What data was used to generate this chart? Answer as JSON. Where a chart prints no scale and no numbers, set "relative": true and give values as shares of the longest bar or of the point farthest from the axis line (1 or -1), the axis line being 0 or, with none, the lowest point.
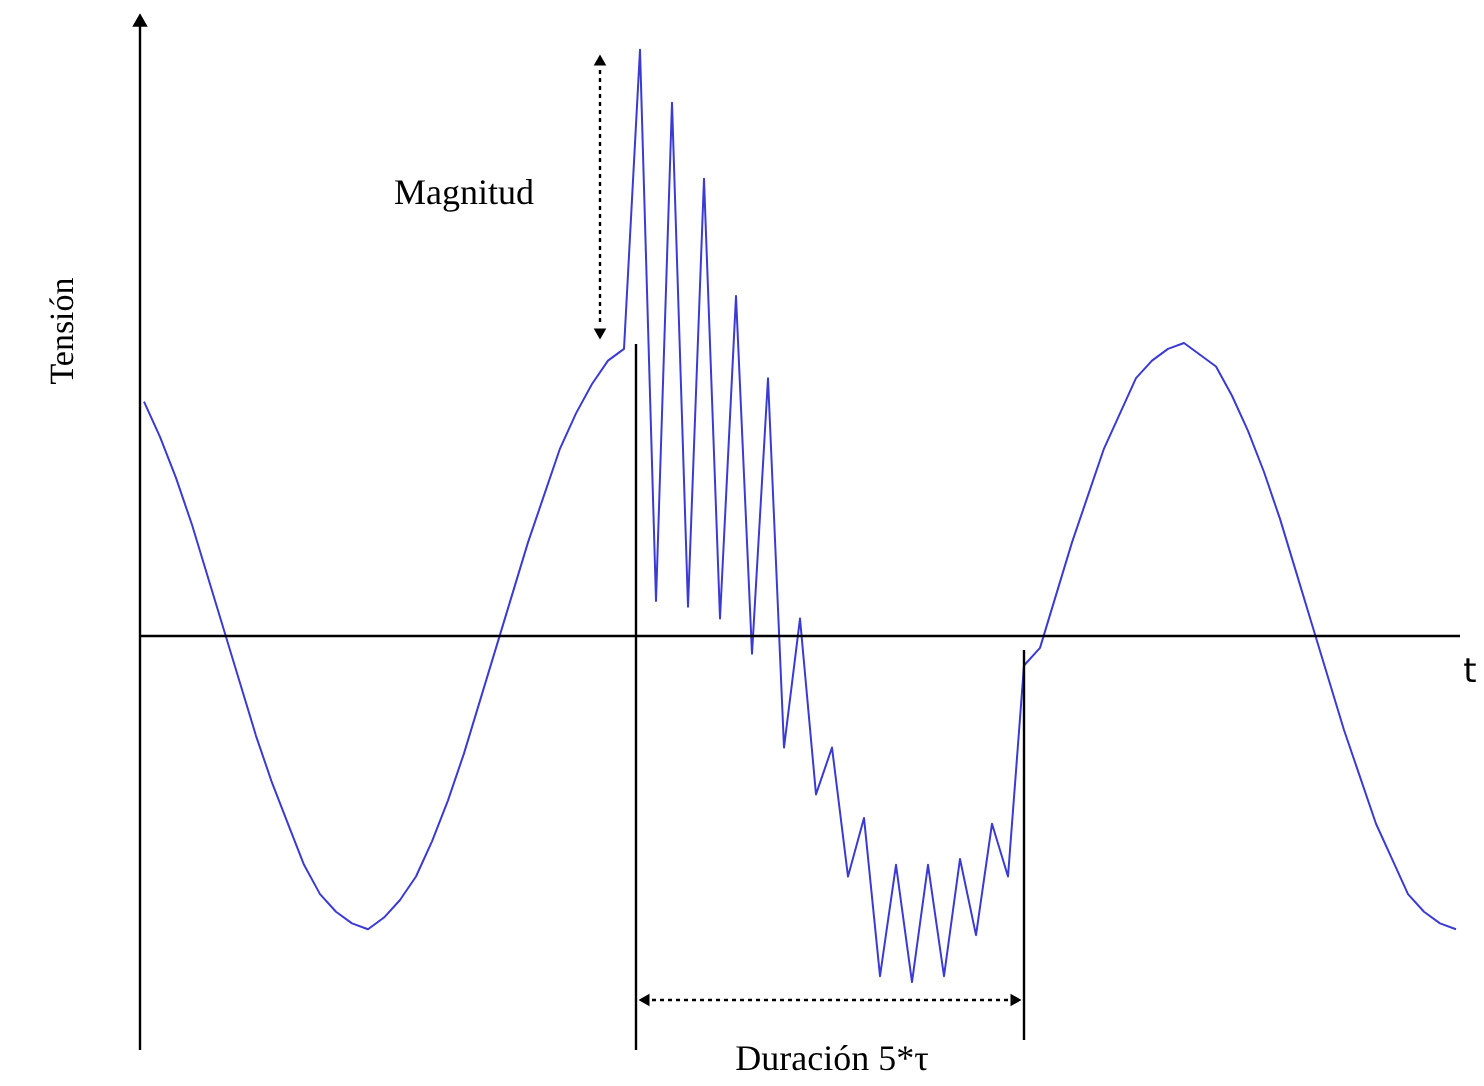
{
  "chart_data": {
    "type": "line",
    "relative": true,
    "ylabel": "Tensión",
    "xlabel": "t",
    "categories": [
      null,
      null,
      null,
      null,
      null,
      null,
      null,
      null,
      null,
      null,
      null,
      null,
      null,
      null,
      null,
      null,
      null,
      null,
      null,
      null,
      null,
      null,
      null,
      null,
      null,
      null,
      null,
      null,
      null,
      null,
      null,
      null,
      null,
      null,
      null,
      null,
      null,
      null,
      null,
      null,
      null,
      null,
      null,
      null,
      null,
      null,
      null,
      null,
      null,
      null,
      null,
      null,
      null,
      null,
      null,
      null,
      null,
      null,
      null,
      null,
      null,
      null,
      null,
      null,
      null,
      null,
      null,
      null,
      null,
      null,
      null,
      null,
      null,
      null,
      null,
      null,
      null,
      null,
      null,
      null,
      null,
      null,
      null
    ],
    "series": [
      {
        "color": "#3b3bd4",
        "values": [
          0.4,
          0.34,
          0.27,
          0.19,
          0.1,
          0.01,
          -0.08,
          -0.17,
          -0.25,
          -0.32,
          -0.39,
          -0.44,
          -0.47,
          -0.49,
          -0.5,
          -0.48,
          -0.45,
          -0.41,
          -0.35,
          -0.28,
          -0.2,
          -0.11,
          -0.02,
          0.07,
          0.16,
          0.24,
          0.32,
          0.38,
          0.43,
          0.47,
          0.49,
          1,
          0.06,
          0.91,
          0.05,
          0.78,
          0.03,
          0.58,
          -0.03,
          0.44,
          -0.19,
          0.03,
          -0.27,
          -0.19,
          -0.41,
          -0.31,
          -0.58,
          -0.39,
          -0.59,
          -0.39,
          -0.58,
          -0.38,
          -0.51,
          -0.32,
          -0.41,
          -0.05,
          -0.02,
          0.07,
          0.16,
          0.24,
          0.32,
          0.38,
          0.44,
          0.47,
          0.49,
          0.5,
          0.48,
          0.46,
          0.41,
          0.35,
          0.28,
          0.2,
          0.11,
          0.02,
          -0.07,
          -0.16,
          -0.24,
          -0.32,
          -0.38,
          -0.44,
          -0.47,
          -0.49,
          -0.5
        ]
      }
    ],
    "annotations": [
      "Magnitud",
      "Duración 5*τ"
    ]
  }
}
